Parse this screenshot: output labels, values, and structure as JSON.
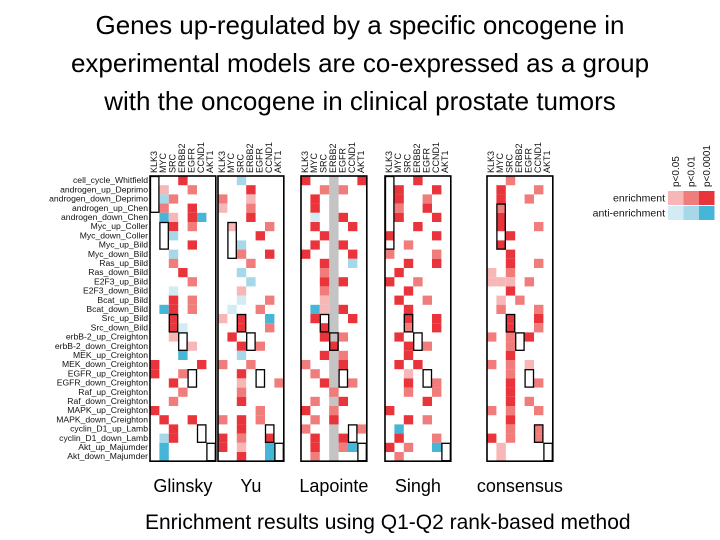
{
  "title_lines": [
    "Genes up-regulated by a specific oncogene in",
    "experimental models are co-expressed as a group",
    "with the oncogene in clinical prostate tumors"
  ],
  "caption": "Enrichment results using Q1-Q2 rank-based method",
  "genes": [
    "KLK3",
    "MYC",
    "SRC",
    "ERBB2",
    "EGFR",
    "CCND1",
    "AKT1"
  ],
  "gene_sets": [
    "cell_cycle_Whitfield",
    "androgen_up_Deprimo",
    "androgen_down_Deprimo",
    "androgen_up_Chen",
    "androgen_down_Chen",
    "Myc_up_Coller",
    "Myc_down_Coller",
    "Myc_up_Bild",
    "Myc_down_Bild",
    "Ras_up_Bild",
    "Ras_down_Bild",
    "E2F3_up_Bild",
    "E2F3_down_Bild",
    "Bcat_up_Bild",
    "Bcat_down_Bild",
    "Src_up_Bild",
    "Src_down_Bild",
    "erbB-2_up_Creighton",
    "erbB-2_down_Creighton",
    "MEK_up_Creighton",
    "MEK_down_Creighton",
    "EGFR_up_Creighton",
    "EGFR_down_Creighton",
    "Raf_up_Creighton",
    "Raf_down_Creighton",
    "MAPK_up_Creighton",
    "MAPK_down_Creighton",
    "cyclin_D1_up_Lamb",
    "cyclin_D1_down_Lamb",
    "Akt_up_Majumder",
    "Akt_down_Majumder"
  ],
  "datasets": [
    "Glinsky",
    "Yu",
    "Lapointe",
    "Singh",
    "consensus"
  ],
  "legend": {
    "p_levels": [
      "p<0.05",
      "p<0.01",
      "p<0.0001"
    ],
    "enrichment_label": "enrichment",
    "anti_enrichment_label": "anti-enrichment",
    "enrichment_colors": [
      "#f7b7b7",
      "#f17c7c",
      "#e8343a"
    ],
    "anti_enrichment_colors": [
      "#d3ecf3",
      "#a6d8ea",
      "#45b5d8"
    ]
  },
  "colors": {
    "empty_cell": "#ffffff",
    "missing_column": "#c4c4c4",
    "outline": "#000000"
  },
  "matrices": {
    "Glinsky": [
      "E..3...",
      ".1..2..",
      ".e2....",
      ".2..3..",
      ".A1.3A.",
      "..3.2..",
      "..e....",
      "....3..",
      "..e....",
      "..2....",
      "...3...",
      "....2..",
      "..a....",
      "..3.2..",
      ".B3.2..",
      "..3....",
      "..3a...",
      "..1....",
      "....1..",
      "...B...",
      "3....3.",
      "3..2...",
      "..3....",
      "...2...",
      "..2....",
      "3......",
      ".3..3..",
      "..3....",
      ".b3....",
      ".A.....",
      ".A....."
    ],
    "Yu": [
      "..e....",
      "...3...",
      "2..1...",
      "1..2...",
      "...3...",
      ".1...2.",
      "....3..",
      "..e....",
      "..2..3.",
      "...2...",
      "..b....",
      "...e...",
      "..1....",
      "..a..2.",
      ".a..2..",
      "1.3..A.",
      "..3..2.",
      ".3.....",
      "..3.2..",
      "..e....",
      "2..2...",
      "..3....",
      "..1...2",
      "..2....",
      "..3....",
      "....2..",
      "2.3.2..",
      "..3....",
      "3.2..3.",
      "3.1..A.",
      "..3..A."
    ],
    "Lapointe": [
      "3.....3",
      "..2.2..",
      ".3.....",
      ".3.....",
      ".a..3..",
      ".3...3.",
      "..3....",
      ".3..3..",
      "3....3.",
      "..3..e.",
      "..2....",
      "..3.3..",
      "..2....",
      "..1....",
      ".A1.3..",
      ".3...3.",
      "..3....",
      "..3.2..",
      "...3...",
      "..3.2..",
      "2...3..",
      ".2.....",
      "..3..2.",
      "...2...",
      ".2..3..",
      "3..2...",
      ".2.3...",
      "2.....2",
      ".3..3..",
      ".3..2A.",
      ".2....."
    ],
    "Singh": [
      "...3...",
      ".3...3.",
      ".3..2..",
      ".2..3..",
      ".3...3.",
      "...3...",
      "3....3.",
      "..2....",
      "2....2.",
      "..3..3.",
      ".3.....",
      "3..2...",
      "..3....",
      ".3..2..",
      "..3....",
      "..3..3.",
      "..2..3.",
      ".3.....",
      "..3.2..",
      "..3....",
      ".3.3...",
      "..1....",
      "..3..2.",
      "..2..2.",
      "....3..",
      "3......",
      "..3.2..",
      ".A.....",
      ".3...2.",
      "3.2..A.",
      ".2....."
    ],
    "consensus": [
      "..2....",
      ".3...2.",
      ".3..2..",
      ".2.....",
      ".3.....",
      ".3...2.",
      "..3....",
      ".3.....",
      "..3....",
      "..3..2.",
      "1.2....",
      "111.2..",
      "..3....",
      ".1.2...",
      ".2...2.",
      "..3..3.",
      "..3..2.",
      "2.2.3..",
      "..2....",
      "..3....",
      "2.2.1..",
      "..2....",
      "..3..2.",
      "..3....",
      "..3.2..",
      "2.2..2.",
      "..3....",
      "..2..2.",
      "3.2..2.",
      ".1.....",
      ".1....."
    ]
  },
  "highlight_boxes": {
    "Glinsky": [
      {
        "rows": [
          0,
          3
        ],
        "cols": [
          0,
          0
        ]
      },
      {
        "rows": [
          5,
          7
        ],
        "cols": [
          1,
          1
        ]
      },
      {
        "rows": [
          15,
          16
        ],
        "cols": [
          2,
          2
        ]
      },
      {
        "rows": [
          17,
          18
        ],
        "cols": [
          3,
          3
        ]
      },
      {
        "rows": [
          21,
          22
        ],
        "cols": [
          4,
          4
        ]
      },
      {
        "rows": [
          27,
          28
        ],
        "cols": [
          5,
          5
        ]
      },
      {
        "rows": [
          29,
          30
        ],
        "cols": [
          6,
          6
        ]
      }
    ],
    "Yu": [
      {
        "rows": [
          5,
          8
        ],
        "cols": [
          1,
          1
        ]
      },
      {
        "rows": [
          15,
          16
        ],
        "cols": [
          2,
          2
        ]
      },
      {
        "rows": [
          17,
          18
        ],
        "cols": [
          3,
          3
        ]
      },
      {
        "rows": [
          21,
          22
        ],
        "cols": [
          4,
          4
        ]
      },
      {
        "rows": [
          27,
          28
        ],
        "cols": [
          5,
          5
        ]
      },
      {
        "rows": [
          29,
          30
        ],
        "cols": [
          6,
          6
        ]
      }
    ],
    "Lapointe": [
      {
        "rows": [
          15,
          16
        ],
        "cols": [
          2,
          2
        ]
      },
      {
        "rows": [
          17,
          18
        ],
        "cols": [
          3,
          3
        ]
      },
      {
        "rows": [
          21,
          22
        ],
        "cols": [
          4,
          4
        ]
      },
      {
        "rows": [
          27,
          28
        ],
        "cols": [
          5,
          5
        ]
      },
      {
        "rows": [
          29,
          30
        ],
        "cols": [
          6,
          6
        ]
      }
    ],
    "Singh": [
      {
        "rows": [
          0,
          7
        ],
        "cols": [
          0,
          0
        ]
      },
      {
        "rows": [
          15,
          16
        ],
        "cols": [
          2,
          2
        ]
      },
      {
        "rows": [
          17,
          18
        ],
        "cols": [
          3,
          3
        ]
      },
      {
        "rows": [
          21,
          22
        ],
        "cols": [
          4,
          4
        ]
      },
      {
        "rows": [
          29,
          30
        ],
        "cols": [
          6,
          6
        ]
      }
    ],
    "consensus": [
      {
        "rows": [
          3,
          7
        ],
        "cols": [
          1,
          1
        ]
      },
      {
        "rows": [
          15,
          16
        ],
        "cols": [
          2,
          2
        ]
      },
      {
        "rows": [
          17,
          18
        ],
        "cols": [
          3,
          3
        ]
      },
      {
        "rows": [
          21,
          22
        ],
        "cols": [
          4,
          4
        ]
      },
      {
        "rows": [
          27,
          28
        ],
        "cols": [
          5,
          5
        ]
      },
      {
        "rows": [
          29,
          30
        ],
        "cols": [
          6,
          6
        ]
      }
    ]
  },
  "missing_columns": {
    "Lapointe": [
      3
    ]
  }
}
